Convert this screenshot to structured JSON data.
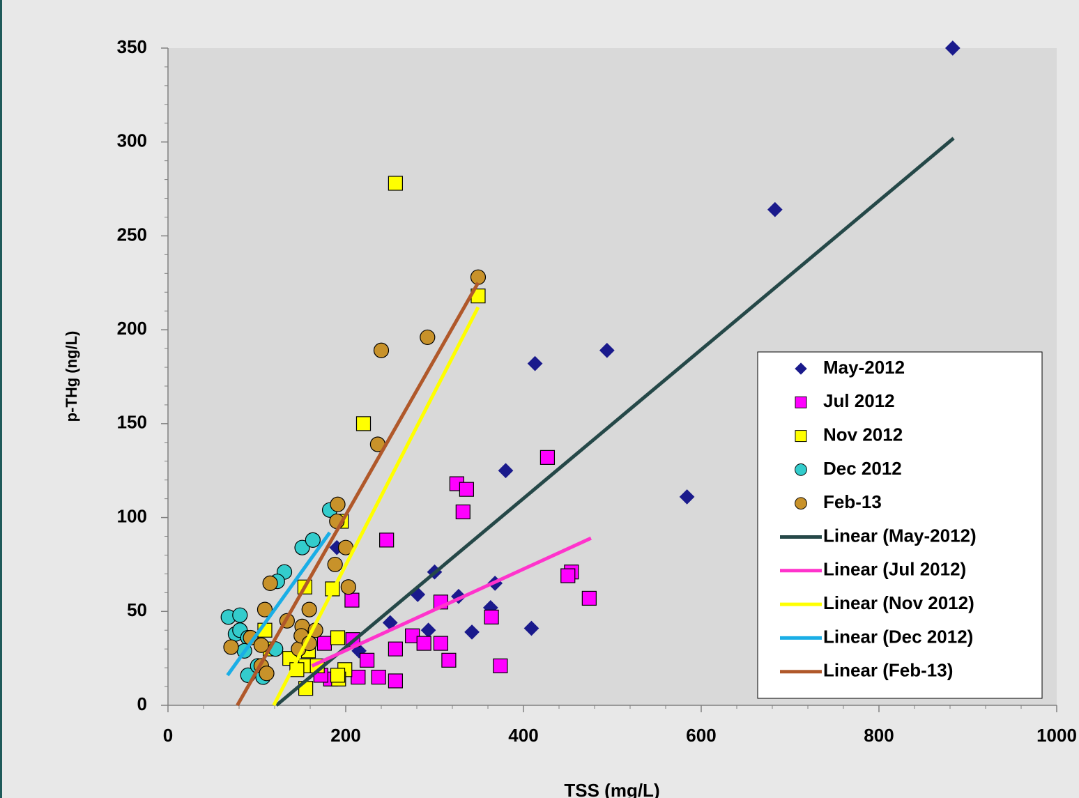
{
  "chart_data": {
    "type": "scatter",
    "xlabel": "TSS (mg/L)",
    "ylabel": "p-THg (ng/L)",
    "xlim": [
      0,
      1000
    ],
    "ylim": [
      0,
      350
    ],
    "xticks": [
      0,
      200,
      400,
      600,
      800,
      1000
    ],
    "yticks": [
      0,
      50,
      100,
      150,
      200,
      250,
      300,
      350
    ],
    "xminor_step": 40,
    "yminor_step": 10,
    "legend": "lower right",
    "series": [
      {
        "name": "May-2012",
        "marker": "diamond",
        "color": "#1a1a8c",
        "x": [
          883,
          683,
          494,
          413,
          584,
          380,
          300,
          281,
          327,
          368,
          363,
          293,
          250,
          342,
          409,
          215,
          190
        ],
        "values": [
          350,
          264,
          189,
          182,
          111,
          125,
          71,
          59,
          58,
          65,
          52,
          40,
          44,
          39,
          41,
          29,
          84
        ]
      },
      {
        "name": "Jul 2012",
        "marker": "square",
        "color": "#ff00ff",
        "x": [
          427,
          325,
          336,
          332,
          246,
          207,
          454,
          450,
          474,
          364,
          307,
          275,
          288,
          307,
          256,
          224,
          316,
          374,
          214,
          237,
          256,
          176,
          208,
          183,
          172
        ],
        "values": [
          132,
          118,
          115,
          103,
          88,
          56,
          71,
          69,
          57,
          47,
          55,
          37,
          33,
          33,
          30,
          24,
          24,
          21,
          15,
          15,
          13,
          33,
          35,
          14,
          16
        ]
      },
      {
        "name": "Nov 2012",
        "marker": "square",
        "color": "#ffff00",
        "x": [
          256,
          349,
          220,
          195,
          185,
          154,
          191,
          199,
          192,
          191,
          158,
          155,
          137,
          145,
          155,
          168,
          109,
          115
        ],
        "values": [
          278,
          218,
          150,
          98,
          62,
          63,
          36,
          19,
          14,
          16,
          29,
          21,
          25,
          19,
          9,
          21,
          40,
          30
        ]
      },
      {
        "name": "Dec 2012",
        "marker": "circle",
        "color": "#33cccc",
        "x": [
          68,
          81,
          76,
          81,
          90,
          86,
          90,
          101,
          107,
          121,
          131,
          151,
          163,
          182,
          123
        ],
        "values": [
          47,
          48,
          38,
          40,
          36,
          29,
          16,
          21,
          15,
          30,
          71,
          84,
          88,
          104,
          66
        ]
      },
      {
        "name": "Feb-13",
        "marker": "circle",
        "color": "#c8922a",
        "x": [
          349,
          292,
          240,
          236,
          191,
          190,
          200,
          188,
          203,
          115,
          109,
          159,
          151,
          134,
          166,
          71,
          93,
          105,
          105,
          111,
          147,
          150,
          159
        ],
        "values": [
          228,
          196,
          189,
          139,
          107,
          98,
          84,
          75,
          63,
          65,
          51,
          51,
          42,
          45,
          40,
          31,
          36,
          32,
          21,
          17,
          30,
          37,
          33
        ]
      },
      {
        "name": "Linear (May-2012)",
        "marker": "line",
        "color": "#254848",
        "x": [
          122,
          884
        ],
        "values": [
          0,
          302
        ]
      },
      {
        "name": "Linear (Jul 2012)",
        "marker": "line",
        "color": "#ff33cc",
        "x": [
          162,
          476
        ],
        "values": [
          21,
          89
        ]
      },
      {
        "name": "Linear (Nov 2012)",
        "marker": "line",
        "color": "#ffff00",
        "x": [
          119,
          349
        ],
        "values": [
          0,
          212
        ]
      },
      {
        "name": "Linear (Dec 2012)",
        "marker": "line",
        "color": "#1aaee6",
        "x": [
          67,
          182
        ],
        "values": [
          16,
          92
        ]
      },
      {
        "name": "Linear (Feb-13)",
        "marker": "line",
        "color": "#b0582a",
        "x": [
          78,
          349
        ],
        "values": [
          0,
          225
        ]
      }
    ]
  }
}
